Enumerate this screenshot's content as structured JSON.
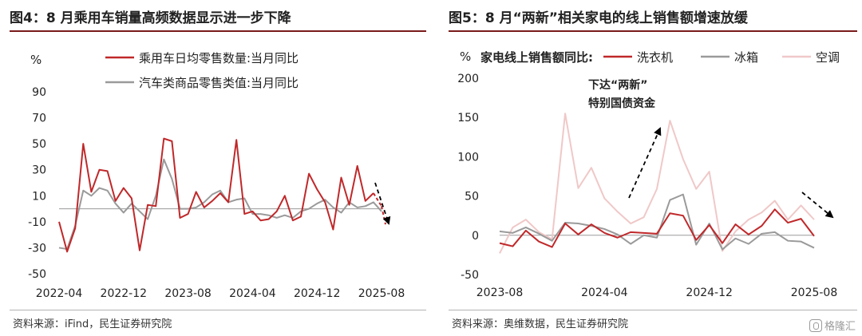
{
  "watermark": {
    "text": "格隆汇",
    "icon": "gelonghui-logo-icon"
  },
  "charts": [
    {
      "title": "图4：8 月乘用车销量高频数据显示进一步下降",
      "source": "资料来源：iFind，民生证券研究院",
      "chart_data": {
        "type": "line",
        "unit": "%",
        "ylim": [
          -50,
          90
        ],
        "yticks": [
          "-50",
          "-30",
          "-10",
          "10",
          "30",
          "50",
          "70",
          "90"
        ],
        "x_tick_labels": [
          "2022-04",
          "2022-12",
          "2023-08",
          "2024-04",
          "2024-12",
          "2025-08"
        ],
        "x": [
          "2022-04",
          "2022-05",
          "2022-06",
          "2022-07",
          "2022-08",
          "2022-09",
          "2022-10",
          "2022-11",
          "2022-12",
          "2023-01",
          "2023-02",
          "2023-03",
          "2023-04",
          "2023-05",
          "2023-06",
          "2023-07",
          "2023-08",
          "2023-09",
          "2023-10",
          "2023-11",
          "2023-12",
          "2024-01",
          "2024-02",
          "2024-03",
          "2024-04",
          "2024-05",
          "2024-06",
          "2024-07",
          "2024-08",
          "2024-09",
          "2024-10",
          "2024-11",
          "2024-12",
          "2025-01",
          "2025-02",
          "2025-03",
          "2025-04",
          "2025-05",
          "2025-06",
          "2025-07",
          "2025-08"
        ],
        "series": [
          {
            "name": "乘用车日均零售数量:当月同比",
            "color": "#c0282a",
            "values": [
              -10,
              -33,
              -15,
              50,
              13,
              30,
              29,
              6,
              16,
              8,
              -32,
              3,
              2,
              54,
              52,
              -7,
              -4,
              13,
              1,
              6,
              12,
              5,
              53,
              -4,
              -2,
              -9,
              -8,
              -2,
              10,
              -9,
              -6,
              27,
              15,
              5,
              -16,
              24,
              3,
              33,
              6,
              12,
              2
            ],
            "dashed_from_index": 39
          },
          {
            "name": "汽车类商品零售类值:当月同比",
            "color": "#9a9a9a",
            "values": [
              -30,
              -31,
              -13,
              14,
              10,
              16,
              14,
              4,
              -3,
              4,
              -2,
              -8,
              10,
              38,
              23,
              0,
              0,
              1,
              5,
              11,
              14,
              5,
              7,
              8,
              -4,
              -4,
              -5,
              -7,
              -5,
              -7,
              -2,
              0,
              4,
              7,
              1,
              -3,
              5,
              1,
              2,
              5,
              -2
            ]
          }
        ],
        "arrow": "down-right"
      }
    },
    {
      "title": "图5：8 月“两新”相关家电的线上销售额增速放缓",
      "source": "资料来源：奥维数据，民生证券研究院",
      "chart_data": {
        "type": "line",
        "unit": "%",
        "legend_title": "家电线上销售额同比:",
        "ylim": [
          -50,
          200
        ],
        "yticks": [
          "-50",
          "0",
          "50",
          "100",
          "150",
          "200"
        ],
        "x_tick_labels": [
          "2023-08",
          "2024-04",
          "2024-12",
          "2025-08"
        ],
        "x": [
          "2023-08",
          "2023-09",
          "2023-10",
          "2023-11",
          "2023-12",
          "2024-01",
          "2024-02",
          "2024-03",
          "2024-04",
          "2024-05",
          "2024-06",
          "2024-07",
          "2024-08",
          "2024-09",
          "2024-10",
          "2024-11",
          "2024-12",
          "2025-01",
          "2025-02",
          "2025-03",
          "2025-04",
          "2025-05",
          "2025-06",
          "2025-07",
          "2025-08"
        ],
        "series": [
          {
            "name": "洗衣机",
            "color": "#c0282a",
            "values": [
              -10,
              -14,
              6,
              -8,
              -15,
              15,
              1,
              14,
              3,
              -3,
              4,
              3,
              2,
              28,
              25,
              -6,
              13,
              -10,
              14,
              1,
              12,
              33,
              16,
              21,
              -1
            ]
          },
          {
            "name": "冰箱",
            "color": "#9a9a9a",
            "values": [
              5,
              3,
              10,
              2,
              -7,
              16,
              15,
              12,
              8,
              1,
              -11,
              0,
              -3,
              45,
              52,
              -12,
              15,
              -18,
              -4,
              -11,
              2,
              4,
              -7,
              -8,
              -16
            ]
          },
          {
            "name": "空调",
            "color": "#f0c8c8",
            "values": [
              -23,
              10,
              20,
              4,
              -5,
              155,
              60,
              86,
              47,
              30,
              15,
              23,
              59,
              146,
              97,
              59,
              81,
              -20,
              5,
              20,
              29,
              44,
              20,
              38,
              20
            ]
          }
        ],
        "annotation": [
          "下达“两新”",
          "特别国债资金"
        ],
        "arrows": [
          "up-right",
          "down-right"
        ]
      }
    }
  ]
}
